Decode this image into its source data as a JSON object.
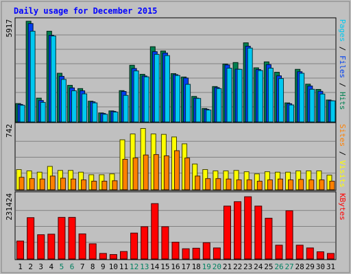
{
  "chart_data": {
    "type": "bar",
    "title": "Daily usage for December 2015",
    "categories": [
      "1",
      "2",
      "3",
      "4",
      "5",
      "6",
      "7",
      "8",
      "9",
      "10",
      "11",
      "12",
      "13",
      "14",
      "15",
      "16",
      "17",
      "18",
      "19",
      "20",
      "21",
      "22",
      "23",
      "24",
      "25",
      "26",
      "27",
      "28",
      "29",
      "30",
      "31"
    ],
    "weekend_days": [
      "5",
      "6",
      "12",
      "13",
      "19",
      "20",
      "26",
      "27"
    ],
    "panels": [
      {
        "id": "hits",
        "max_label": "5917",
        "ylim": [
          0,
          5917
        ],
        "legend": [
          {
            "label": "Pages",
            "color": "#00c8f0"
          },
          {
            "label": "Files",
            "color": "#0040f0"
          },
          {
            "label": "Hits",
            "color": "#008050"
          }
        ],
        "series": [
          {
            "name": "Hits",
            "color": "#008050",
            "values": [
              1080,
              5917,
              1400,
              5330,
              2860,
              2150,
              1960,
              1220,
              530,
              650,
              1840,
              3330,
              2800,
              4420,
              4170,
              2840,
              2640,
              1500,
              790,
              2080,
              3400,
              3490,
              4650,
              3180,
              3530,
              2920,
              1120,
              3090,
              2220,
              1910,
              1290
            ]
          },
          {
            "name": "Files",
            "color": "#0040f0",
            "values": [
              1030,
              5780,
              1260,
              5090,
              2680,
              2000,
              1830,
              1180,
              500,
              620,
              1790,
              3140,
              2700,
              4130,
              4050,
              2780,
              2580,
              1400,
              740,
              2020,
              3350,
              3100,
              4450,
              3080,
              3370,
              2710,
              1070,
              2950,
              2110,
              1800,
              1250
            ]
          },
          {
            "name": "Pages",
            "color": "#00c8f0",
            "values": [
              980,
              5330,
              1150,
              5050,
              2500,
              1830,
              1650,
              1120,
              450,
              580,
              1560,
              3000,
              2650,
              3970,
              3900,
              2730,
              2210,
              1380,
              700,
              1960,
              3160,
              3090,
              4340,
              3020,
              3160,
              2550,
              1000,
              2860,
              1920,
              1640,
              1240
            ]
          }
        ]
      },
      {
        "id": "visits",
        "max_label": "742",
        "ylim": [
          0,
          742
        ],
        "legend": [
          {
            "label": "Sites",
            "color": "#ff8000"
          },
          {
            "label": "Visits",
            "color": "#ffff00"
          }
        ],
        "series": [
          {
            "name": "Visits",
            "color": "#ffff00",
            "values": [
              235,
              220,
              205,
              272,
              225,
              225,
              205,
              175,
              175,
              185,
              582,
              650,
              714,
              650,
              645,
              615,
              535,
              300,
              235,
              220,
              220,
              225,
              210,
              185,
              210,
              205,
              205,
              220,
              220,
              220,
              170
            ]
          },
          {
            "name": "Sites",
            "color": "#ff8000",
            "values": [
              145,
              130,
              125,
              160,
              135,
              125,
              115,
              100,
              100,
              105,
              355,
              370,
              405,
              410,
              395,
              455,
              370,
              160,
              130,
              130,
              125,
              115,
              115,
              100,
              115,
              125,
              115,
              120,
              115,
              115,
              100
            ]
          }
        ]
      },
      {
        "id": "kbytes",
        "max_label": "231424",
        "ylim": [
          0,
          231424
        ],
        "legend": [
          {
            "label": "KBytes",
            "color": "#ff0000"
          }
        ],
        "series": [
          {
            "name": "KBytes",
            "color": "#ff0000",
            "values": [
              65000,
              150000,
              88000,
              90000,
              151000,
              151000,
              91000,
              55000,
              20000,
              16000,
              27000,
              94000,
              117000,
              201000,
              117000,
              61000,
              37000,
              39000,
              59000,
              40000,
              192000,
              208000,
              226000,
              192000,
              148000,
              50000,
              175000,
              50000,
              40000,
              26000,
              20000
            ]
          }
        ]
      }
    ]
  }
}
